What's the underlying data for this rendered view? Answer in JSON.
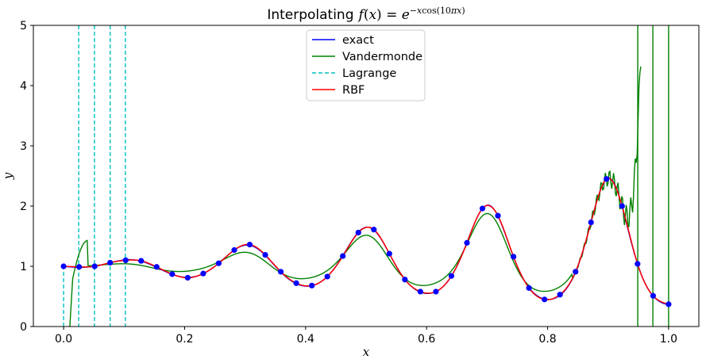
{
  "chart_data": {
    "type": "line",
    "title": "Interpolating",
    "title_math": "f(x) = e^{-x cos(10πx)}",
    "xlabel": "x",
    "ylabel": "y",
    "xlim": [
      -0.05,
      1.05
    ],
    "ylim": [
      0,
      5
    ],
    "x_ticks": [
      0.0,
      0.2,
      0.4,
      0.6,
      0.8,
      1.0
    ],
    "x_tick_labels": [
      "0.0",
      "0.2",
      "0.4",
      "0.6",
      "0.8",
      "1.0"
    ],
    "y_ticks": [
      0,
      1,
      2,
      3,
      4,
      5
    ],
    "y_tick_labels": [
      "0",
      "1",
      "2",
      "3",
      "4",
      "5"
    ],
    "grid": false,
    "legend_position": "upper-center",
    "series": [
      {
        "name": "exact",
        "color": "#0000ff",
        "style": "solid"
      },
      {
        "name": "Vandermonde",
        "color": "#008000",
        "style": "solid"
      },
      {
        "name": "Lagrange",
        "color": "#00bfbf",
        "style": "dashed"
      },
      {
        "name": "RBF",
        "color": "#ff0000",
        "style": "solid"
      }
    ],
    "samples": {
      "color": "#0000ff",
      "x": [
        0.0,
        0.0256,
        0.0513,
        0.0769,
        0.1026,
        0.1282,
        0.1538,
        0.1795,
        0.2051,
        0.2308,
        0.2564,
        0.2821,
        0.3077,
        0.3333,
        0.359,
        0.3846,
        0.4103,
        0.4359,
        0.4615,
        0.4872,
        0.5128,
        0.5385,
        0.5641,
        0.5897,
        0.6154,
        0.641,
        0.6667,
        0.6923,
        0.7179,
        0.7436,
        0.7692,
        0.7949,
        0.8205,
        0.8462,
        0.8718,
        0.8974,
        0.9231,
        0.9487,
        0.9744,
        1.0
      ],
      "y": [
        1.0,
        0.99,
        1.0,
        1.06,
        1.1,
        1.09,
        0.99,
        0.87,
        0.81,
        0.88,
        1.05,
        1.27,
        1.36,
        1.19,
        0.91,
        0.72,
        0.68,
        0.83,
        1.17,
        1.56,
        1.61,
        1.21,
        0.78,
        0.58,
        0.58,
        0.84,
        1.39,
        1.96,
        1.84,
        1.16,
        0.64,
        0.45,
        0.53,
        0.91,
        1.73,
        2.45,
        2.0,
        1.04,
        0.51,
        0.37
      ]
    },
    "lagrange_spikes_x": [
      0.025,
      0.051,
      0.077,
      0.102
    ],
    "vandermonde_spikes_x": [
      0.949,
      0.974,
      1.0
    ]
  }
}
